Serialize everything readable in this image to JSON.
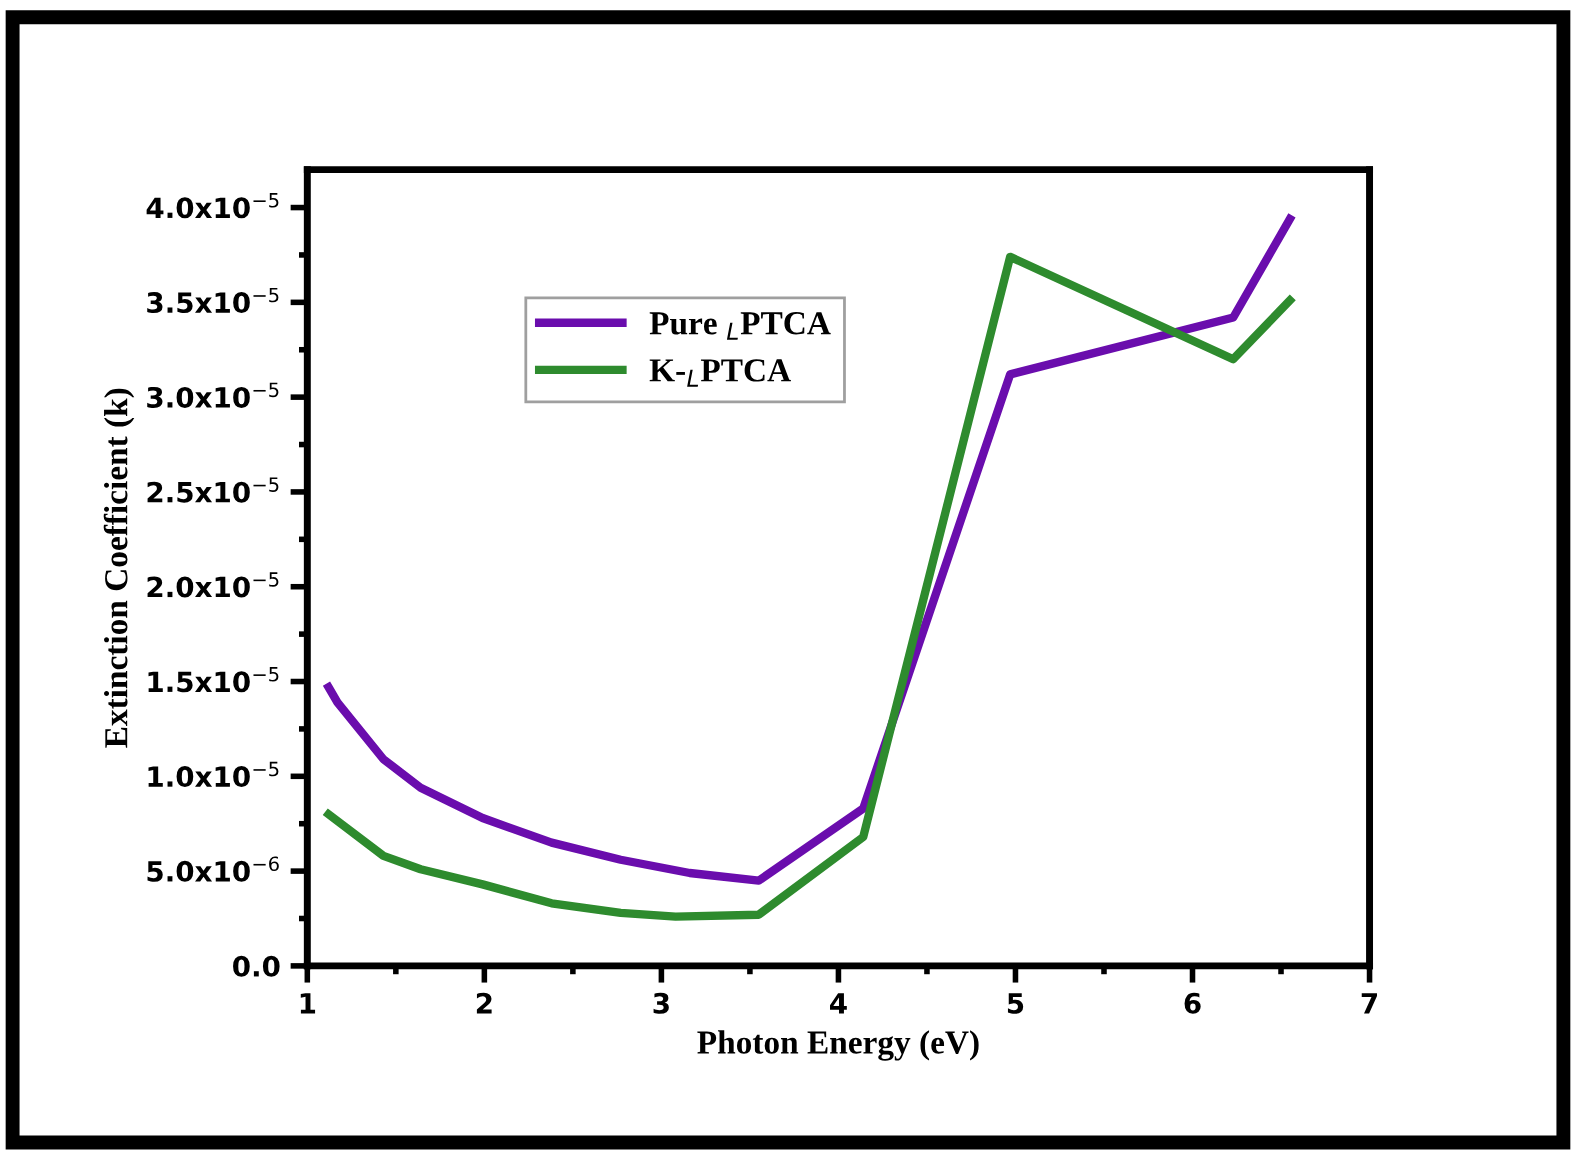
{
  "chart_data": {
    "type": "line",
    "xlabel": "Photon Energy (eV)",
    "ylabel": "Extinction Coefficient (k)",
    "xlim": [
      1,
      7
    ],
    "xticks": [
      1,
      2,
      3,
      4,
      5,
      6,
      7
    ],
    "ylim": [
      0,
      4.2e-05
    ],
    "yticks": [
      {
        "value": 0,
        "label": "0.0"
      },
      {
        "value": 5e-06,
        "label": "5.0x10$^{−6}$"
      },
      {
        "value": 1e-05,
        "label": "1.0x10$^{−5}$"
      },
      {
        "value": 1.5e-05,
        "label": "1.5x10$^{−5}$"
      },
      {
        "value": 2e-05,
        "label": "2.0x10$^{−5}$"
      },
      {
        "value": 2.5e-05,
        "label": "2.5x10$^{−5}$"
      },
      {
        "value": 3e-05,
        "label": "3.0x10$^{−5}$"
      },
      {
        "value": 3.5e-05,
        "label": "3.5x10$^{−5}$"
      },
      {
        "value": 4e-05,
        "label": "4.0x10$^{−5}$"
      }
    ],
    "legend": "top center",
    "grid": false,
    "marker": "none",
    "line_style": "solid",
    "series": [
      {
        "name": "Pure $_{L}$PTCA",
        "color": "#6a0dad",
        "x": [
          1.12,
          1.17,
          1.43,
          1.64,
          1.99,
          2.38,
          2.77,
          3.16,
          3.55,
          4.14,
          4.97,
          6.23,
          6.55
        ],
        "values": [
          1.47e-05,
          1.39e-05,
          1.09e-05,
          9.4e-06,
          7.8e-06,
          6.5e-06,
          5.6e-06,
          4.9e-06,
          4.5e-06,
          8.3e-06,
          3.12e-05,
          3.42e-05,
          3.94e-05
        ]
      },
      {
        "name": "K-$_{L}$PTCA",
        "color": "#2e8b2e",
        "x": [
          1.12,
          1.43,
          1.64,
          1.99,
          2.38,
          2.77,
          3.08,
          3.55,
          4.14,
          4.97,
          6.23,
          6.55
        ],
        "values": [
          8e-06,
          5.8e-06,
          5.1e-06,
          4.3e-06,
          3.3e-06,
          2.8e-06,
          2.6e-06,
          2.7e-06,
          6.8e-06,
          3.74e-05,
          3.2e-05,
          3.51e-05
        ]
      }
    ]
  }
}
